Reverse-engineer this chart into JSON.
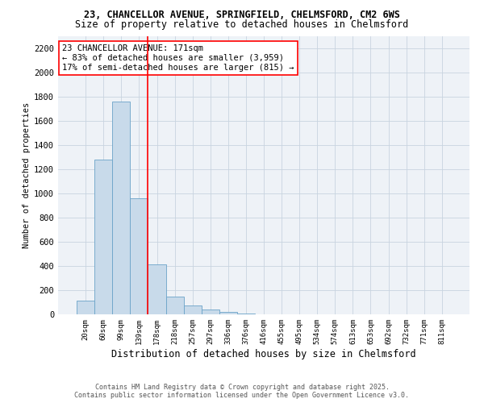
{
  "title1": "23, CHANCELLOR AVENUE, SPRINGFIELD, CHELMSFORD, CM2 6WS",
  "title2": "Size of property relative to detached houses in Chelmsford",
  "xlabel": "Distribution of detached houses by size in Chelmsford",
  "ylabel": "Number of detached properties",
  "categories": [
    "20sqm",
    "60sqm",
    "99sqm",
    "139sqm",
    "178sqm",
    "218sqm",
    "257sqm",
    "297sqm",
    "336sqm",
    "376sqm",
    "416sqm",
    "455sqm",
    "495sqm",
    "534sqm",
    "574sqm",
    "613sqm",
    "653sqm",
    "692sqm",
    "732sqm",
    "771sqm",
    "811sqm"
  ],
  "values": [
    115,
    1280,
    1760,
    960,
    415,
    150,
    75,
    38,
    22,
    5,
    0,
    0,
    0,
    0,
    0,
    0,
    0,
    0,
    0,
    0,
    0
  ],
  "bar_color": "#c8daea",
  "bar_edge_color": "#6aa3c8",
  "vline_color": "red",
  "annotation_text": "23 CHANCELLOR AVENUE: 171sqm\n← 83% of detached houses are smaller (3,959)\n17% of semi-detached houses are larger (815) →",
  "annotation_box_color": "white",
  "annotation_box_edge": "red",
  "ylim": [
    0,
    2300
  ],
  "yticks": [
    0,
    200,
    400,
    600,
    800,
    1000,
    1200,
    1400,
    1600,
    1800,
    2000,
    2200
  ],
  "footer1": "Contains HM Land Registry data © Crown copyright and database right 2025.",
  "footer2": "Contains public sector information licensed under the Open Government Licence v3.0.",
  "bg_color": "#eef2f7",
  "grid_color": "#c8d4e0",
  "title1_fontsize": 8.5,
  "title2_fontsize": 8.5,
  "xlabel_fontsize": 8.5,
  "ylabel_fontsize": 7.5,
  "xtick_fontsize": 6.5,
  "ytick_fontsize": 7.5,
  "annot_fontsize": 7.5,
  "footer_fontsize": 6.0
}
